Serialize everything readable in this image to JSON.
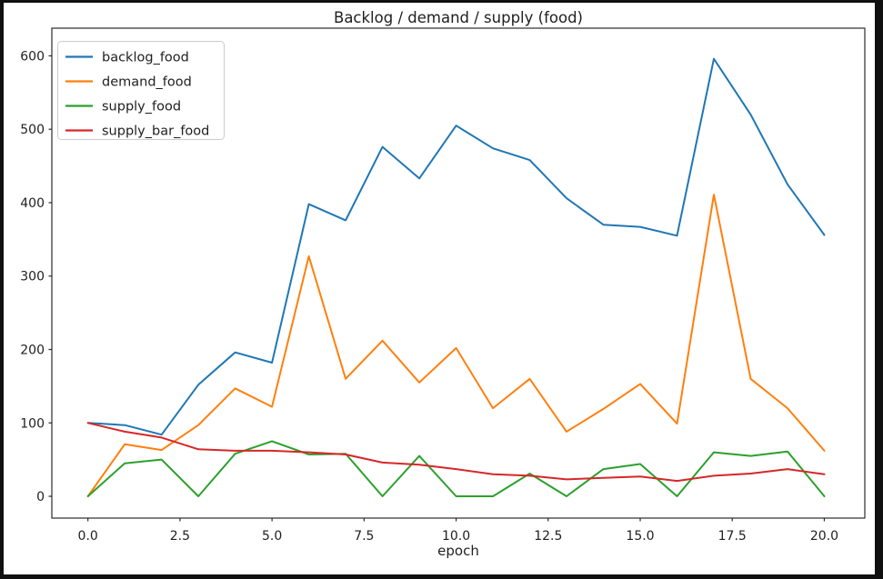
{
  "window": {
    "background_color": "#101010",
    "figure_background_color": "#ffffff"
  },
  "chart_data": {
    "type": "line",
    "title": "Backlog / demand / supply (food)",
    "xlabel": "epoch",
    "ylabel": "",
    "grid": false,
    "x": [
      0,
      1,
      2,
      3,
      4,
      5,
      6,
      7,
      8,
      9,
      10,
      11,
      12,
      13,
      14,
      15,
      16,
      17,
      18,
      19,
      20
    ],
    "series": [
      {
        "name": "backlog_food",
        "color": "#1f77b4",
        "values": [
          100,
          97,
          84,
          152,
          196,
          182,
          398,
          376,
          476,
          433,
          505,
          474,
          458,
          406,
          370,
          367,
          355,
          596,
          520,
          425,
          356
        ]
      },
      {
        "name": "demand_food",
        "color": "#ff7f0e",
        "values": [
          0,
          71,
          63,
          97,
          147,
          122,
          327,
          160,
          212,
          155,
          202,
          120,
          160,
          88,
          119,
          153,
          99,
          411,
          160,
          120,
          62
        ]
      },
      {
        "name": "supply_food",
        "color": "#2ca02c",
        "values": [
          0,
          45,
          50,
          0,
          58,
          75,
          57,
          58,
          0,
          55,
          0,
          0,
          31,
          0,
          37,
          44,
          0,
          60,
          55,
          61,
          0
        ]
      },
      {
        "name": "supply_bar_food",
        "color": "#d62728",
        "values": [
          100,
          88,
          80,
          64,
          62,
          62,
          60,
          57,
          46,
          43,
          37,
          30,
          28,
          23,
          25,
          27,
          21,
          28,
          31,
          37,
          30
        ]
      }
    ],
    "xticks": {
      "values": [
        0,
        2.5,
        5,
        7.5,
        10,
        12.5,
        15,
        17.5,
        20
      ],
      "labels": [
        "0.0",
        "2.5",
        "5.0",
        "7.5",
        "10.0",
        "12.5",
        "15.0",
        "17.5",
        "20.0"
      ]
    },
    "yticks": {
      "values": [
        0,
        100,
        200,
        300,
        400,
        500,
        600
      ],
      "labels": [
        "0",
        "100",
        "200",
        "300",
        "400",
        "500",
        "600"
      ]
    },
    "xlim": [
      -0.98,
      21.1
    ],
    "ylim": [
      -29.7,
      637.7
    ],
    "legend": {
      "position": "upper-left",
      "entries": [
        "backlog_food",
        "demand_food",
        "supply_food",
        "supply_bar_food"
      ]
    },
    "axis_color": "#2b2b2b",
    "text_color": "#1f1f1f",
    "legend_border_color": "#cccccc"
  }
}
